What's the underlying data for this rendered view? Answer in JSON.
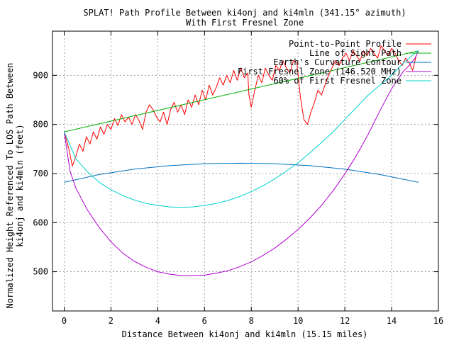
{
  "chart_data": {
    "type": "line",
    "title": "SPLAT! Path Profile Between ki4onj and ki4mln (341.15° azimuth)",
    "subtitle": "With First Fresnel Zone",
    "xlabel": "Distance Between ki4onj and ki4mln (15.15 miles)",
    "ylabel_line1": "Normalized Height Referenced To LOS Path Between",
    "ylabel_line2": "ki4onj and ki4mln (feet)",
    "xlim": [
      -0.5,
      16
    ],
    "ylim": [
      420,
      990
    ],
    "xticks": [
      0,
      2,
      4,
      6,
      8,
      10,
      12,
      14,
      16
    ],
    "yticks": [
      500,
      600,
      700,
      800,
      900
    ],
    "grid": true,
    "legend_position": "top-right",
    "series": [
      {
        "name": "Point-to-Point Profile",
        "color": "#ff0000",
        "x": [
          0.0,
          0.2,
          0.35,
          0.5,
          0.65,
          0.8,
          0.95,
          1.1,
          1.25,
          1.4,
          1.55,
          1.7,
          1.85,
          2.0,
          2.15,
          2.3,
          2.45,
          2.6,
          2.75,
          2.9,
          3.05,
          3.2,
          3.35,
          3.5,
          3.65,
          3.8,
          3.95,
          4.1,
          4.25,
          4.4,
          4.55,
          4.7,
          4.85,
          5.0,
          5.15,
          5.3,
          5.45,
          5.6,
          5.75,
          5.9,
          6.05,
          6.2,
          6.35,
          6.5,
          6.65,
          6.8,
          6.95,
          7.1,
          7.25,
          7.4,
          7.55,
          7.7,
          7.85,
          7.9,
          8.0,
          8.15,
          8.3,
          8.45,
          8.6,
          8.75,
          8.9,
          9.05,
          9.2,
          9.35,
          9.5,
          9.65,
          9.8,
          9.95,
          10.1,
          10.25,
          10.4,
          10.55,
          10.7,
          10.85,
          11.0,
          11.15,
          11.3,
          11.45,
          11.6,
          11.75,
          11.9,
          12.05,
          12.2,
          12.35,
          12.5,
          12.65,
          12.8,
          12.95,
          13.1,
          13.25,
          13.4,
          13.55,
          13.7,
          13.85,
          14.0,
          14.15,
          14.3,
          14.45,
          14.6,
          14.75,
          14.9,
          15.05
        ],
        "values": [
          785,
          750,
          715,
          735,
          760,
          745,
          775,
          760,
          785,
          770,
          795,
          780,
          800,
          790,
          812,
          798,
          820,
          805,
          815,
          800,
          820,
          808,
          790,
          825,
          840,
          830,
          815,
          805,
          825,
          800,
          830,
          845,
          825,
          840,
          820,
          850,
          835,
          860,
          840,
          870,
          850,
          880,
          860,
          875,
          895,
          880,
          900,
          885,
          910,
          890,
          915,
          895,
          905,
          860,
          835,
          870,
          900,
          885,
          915,
          900,
          890,
          920,
          910,
          930,
          915,
          905,
          930,
          925,
          855,
          810,
          800,
          825,
          845,
          870,
          860,
          880,
          900,
          915,
          930,
          920,
          935,
          945,
          930,
          950,
          940,
          930,
          950,
          940,
          955,
          945,
          935,
          960,
          950,
          940,
          955,
          945,
          930,
          920,
          935,
          925,
          910,
          940
        ]
      },
      {
        "name": "Line of Sight Path",
        "color": "#00b000",
        "x": [
          0,
          15.15
        ],
        "values": [
          785,
          950
        ]
      },
      {
        "name": "Earth's Curvature Contour",
        "color": "#0070c0",
        "x": [
          0,
          1.5,
          3,
          4.5,
          6,
          7.575,
          9,
          10.5,
          12,
          13.5,
          15.15
        ],
        "values": [
          682,
          698,
          709,
          716,
          720,
          721,
          720,
          716,
          709,
          698,
          682
        ]
      },
      {
        "name": "First Fresnel Zone (146.520 MHz)",
        "color": "#b000d0",
        "x": [
          0,
          0.25,
          0.5,
          1,
          1.5,
          2,
          2.5,
          3,
          3.5,
          4,
          4.5,
          5,
          5.5,
          6,
          6.5,
          7,
          7.5,
          8,
          8.5,
          9,
          9.5,
          10,
          10.5,
          11,
          11.5,
          12,
          12.5,
          13,
          13.5,
          14,
          14.5,
          14.75,
          15,
          15.15
        ],
        "values": [
          785,
          705,
          670,
          625,
          590,
          561,
          538,
          521,
          509,
          500,
          495,
          492,
          492,
          493,
          497,
          502,
          510,
          520,
          533,
          548,
          566,
          586,
          609,
          635,
          665,
          699,
          737,
          780,
          828,
          873,
          908,
          920,
          935,
          950
        ]
      },
      {
        "name": "60% of First Fresnel Zone",
        "color": "#00d0d0",
        "x": [
          0,
          0.5,
          1,
          1.5,
          2,
          2.5,
          3,
          3.5,
          4,
          4.5,
          5,
          5.5,
          6,
          6.5,
          7,
          7.5,
          8,
          8.5,
          9,
          9.5,
          10,
          10.5,
          11,
          11.5,
          12,
          12.5,
          13,
          13.5,
          14,
          14.5,
          15,
          15.15
        ],
        "values": [
          785,
          730,
          703,
          682,
          667,
          655,
          646,
          639,
          635,
          632,
          631,
          632,
          635,
          639,
          645,
          653,
          663,
          675,
          689,
          705,
          722,
          742,
          763,
          785,
          810,
          835,
          860,
          880,
          900,
          925,
          945,
          950
        ]
      }
    ]
  }
}
